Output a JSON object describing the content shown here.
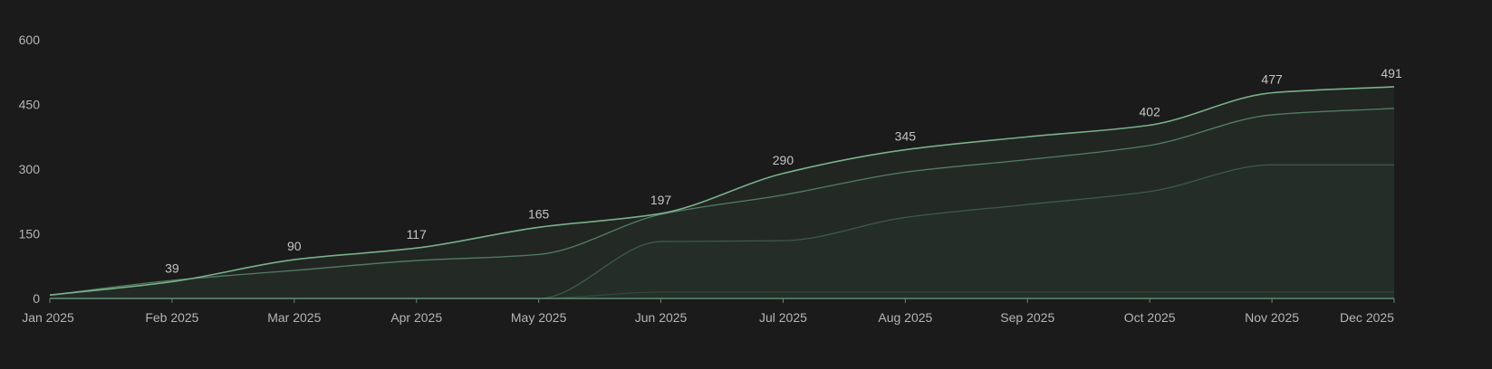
{
  "chart_data": {
    "type": "area",
    "x": [
      "Jan 2025",
      "Feb 2025",
      "Mar 2025",
      "Apr 2025",
      "May 2025",
      "Jun 2025",
      "Jul 2025",
      "Aug 2025",
      "Sep 2025",
      "Oct 2025",
      "Nov 2025",
      "Dec 2025"
    ],
    "ylim": [
      0,
      600
    ],
    "yticks": [
      "0",
      "150",
      "300",
      "450",
      "600"
    ],
    "grid": false,
    "series": [
      {
        "values": [
          0,
          0,
          0,
          0,
          0,
          15,
          15,
          15,
          15,
          15,
          15,
          15
        ],
        "color": "#3f5d4c",
        "opacity": 0.55
      },
      {
        "values": [
          0,
          0,
          0,
          0,
          0,
          132,
          134,
          188,
          218,
          248,
          310,
          310
        ],
        "color": "#4a6e58",
        "opacity": 0.7
      },
      {
        "values": [
          8,
          42,
          65,
          88,
          102,
          195,
          240,
          293,
          322,
          355,
          426,
          441
        ],
        "color": "#5d8c6f",
        "opacity": 0.85
      },
      {
        "values": [
          8,
          39,
          90,
          117,
          165,
          197,
          290,
          345,
          375,
          402,
          477,
          491
        ],
        "color": "#79b08a",
        "opacity": 1
      }
    ],
    "data_labels": [
      "",
      "39",
      "90",
      "117",
      "165",
      "197",
      "290",
      "345",
      "",
      "402",
      "477",
      "491"
    ]
  }
}
